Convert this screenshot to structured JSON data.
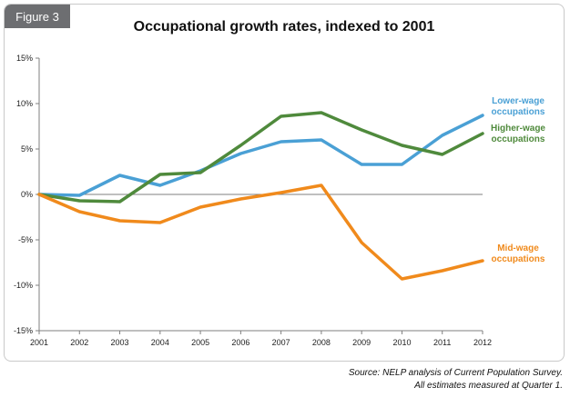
{
  "figure_label": "Figure 3",
  "chart_data": {
    "type": "line",
    "title": "Occupational growth rates, indexed to 2001",
    "xlabel": "",
    "ylabel": "",
    "x": [
      "2001",
      "2002",
      "2003",
      "2004",
      "2005",
      "2006",
      "2007",
      "2008",
      "2009",
      "2010",
      "2011",
      "2012"
    ],
    "ylim": [
      -15,
      15
    ],
    "yticks": [
      -15,
      -10,
      -5,
      0,
      5,
      10,
      15
    ],
    "ytick_labels": [
      "-15%",
      "-10%",
      "-5%",
      "0%",
      "5%",
      "10%",
      "15%"
    ],
    "grid": false,
    "series": [
      {
        "name": "Lower-wage occupations",
        "label_lines": [
          "Lower-wage",
          "occupations"
        ],
        "color": "#4aa0d5",
        "values": [
          0,
          -0.1,
          2.1,
          1.0,
          2.6,
          4.5,
          5.8,
          6.0,
          3.3,
          3.3,
          6.5,
          8.7
        ]
      },
      {
        "name": "Higher-wage occupations",
        "label_lines": [
          "Higher-wage",
          "occupations"
        ],
        "color": "#4f8a3c",
        "values": [
          0,
          -0.7,
          -0.8,
          2.2,
          2.4,
          5.4,
          8.6,
          9.0,
          7.1,
          5.4,
          4.4,
          6.7
        ]
      },
      {
        "name": "Mid-wage occupations",
        "label_lines": [
          "Mid-wage",
          "occupations"
        ],
        "color": "#f08a1c",
        "values": [
          0,
          -1.9,
          -2.9,
          -3.1,
          -1.4,
          -0.5,
          0.2,
          1.0,
          -5.3,
          -9.3,
          -8.4,
          -7.3
        ]
      }
    ]
  },
  "source_lines": [
    "Source: NELP analysis of Current Population Survey.",
    "All estimates measured at Quarter 1."
  ]
}
